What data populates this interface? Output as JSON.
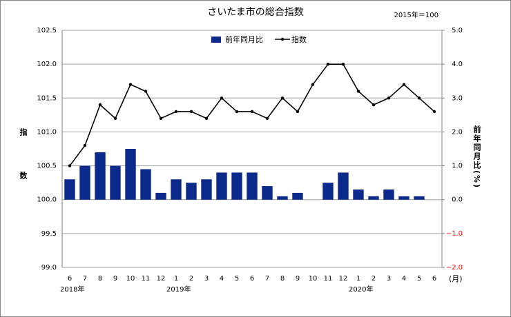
{
  "chart_data": {
    "type": "bar-line",
    "title": "さいたま市の総合指数",
    "note": "2015年＝100",
    "y_label": "指数",
    "y2_label": "前年同月比(%)",
    "x_unit": "(月)",
    "categories": [
      "6",
      "7",
      "8",
      "9",
      "10",
      "11",
      "12",
      "1",
      "2",
      "3",
      "4",
      "5",
      "6",
      "7",
      "8",
      "9",
      "10",
      "11",
      "12",
      "1",
      "2",
      "3",
      "4",
      "5",
      "6"
    ],
    "year_labels": [
      "2018年",
      null,
      null,
      null,
      null,
      null,
      null,
      "2019年",
      null,
      null,
      null,
      null,
      null,
      null,
      null,
      null,
      null,
      null,
      null,
      "2020年",
      null,
      null,
      null,
      null,
      null
    ],
    "series": [
      {
        "name": "前年同月比",
        "kind": "bar",
        "axis": "y2",
        "color": "#0b2a8c",
        "values": [
          0.6,
          1.0,
          1.4,
          1.0,
          1.5,
          0.9,
          0.2,
          0.6,
          0.5,
          0.6,
          0.8,
          0.8,
          0.8,
          0.4,
          0.1,
          0.2,
          0.0,
          0.5,
          0.8,
          0.3,
          0.1,
          0.3,
          0.1,
          0.1,
          null
        ]
      },
      {
        "name": "指数",
        "kind": "line",
        "axis": "y",
        "color": "#000000",
        "values": [
          100.5,
          100.8,
          101.4,
          101.2,
          101.7,
          101.6,
          101.2,
          101.3,
          101.3,
          101.2,
          101.5,
          101.3,
          101.3,
          101.2,
          101.5,
          101.3,
          101.7,
          102.0,
          102.0,
          101.6,
          101.4,
          101.5,
          101.7,
          101.5,
          101.3
        ]
      }
    ],
    "ylim": [
      99.0,
      102.5
    ],
    "yticks": [
      {
        "value": 99,
        "label": "99.0"
      },
      {
        "value": 99.5,
        "label": "99.5"
      },
      {
        "value": 100,
        "label": "100.0"
      },
      {
        "value": 100.5,
        "label": "100.5"
      },
      {
        "value": 101,
        "label": "101.0"
      },
      {
        "value": 101.5,
        "label": "101.5"
      },
      {
        "value": 102,
        "label": "102.0"
      },
      {
        "value": 102.5,
        "label": "102.5"
      }
    ],
    "y2lim": [
      -2.0,
      5.0
    ],
    "y2ticks": [
      {
        "value": -2,
        "label": "−2.0"
      },
      {
        "value": -1,
        "label": "−1.0"
      },
      {
        "value": 0,
        "label": "0.0"
      },
      {
        "value": 1,
        "label": "1.0"
      },
      {
        "value": 2,
        "label": "2.0"
      },
      {
        "value": 3,
        "label": "3.0"
      },
      {
        "value": 4,
        "label": "4.0"
      },
      {
        "value": 5,
        "label": "5.0"
      }
    ],
    "negative_tick_color": "#ff0000",
    "grid": true
  }
}
